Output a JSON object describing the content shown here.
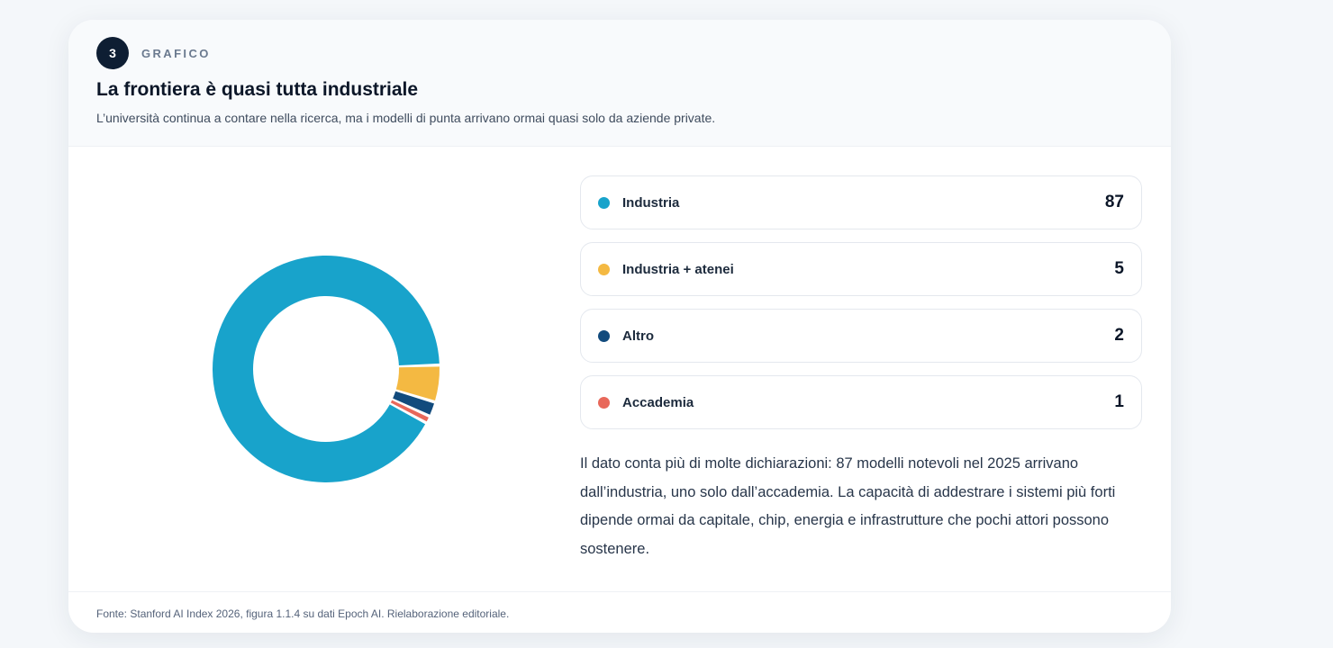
{
  "header": {
    "step_number": "3",
    "eyebrow": "GRAFICO",
    "title": "La frontiera è quasi tutta industriale",
    "subtitle": "L’università continua a contare nella ricerca, ma i modelli di punta arrivano ormai quasi solo da aziende private."
  },
  "chart_data": {
    "type": "pie",
    "variant": "donut",
    "categories": [
      "Industria",
      "Industria + atenei",
      "Altro",
      "Accademia"
    ],
    "values": [
      87,
      5,
      2,
      1
    ],
    "colors": [
      "#18a3cb",
      "#f4b942",
      "#124b7d",
      "#e8685a"
    ],
    "title": "",
    "legend_position": "right"
  },
  "legend": {
    "items": [
      {
        "label": "Industria",
        "value": "87",
        "color": "#18a3cb"
      },
      {
        "label": "Industria + atenei",
        "value": "5",
        "color": "#f4b942"
      },
      {
        "label": "Altro",
        "value": "2",
        "color": "#124b7d"
      },
      {
        "label": "Accademia",
        "value": "1",
        "color": "#e8685a"
      }
    ]
  },
  "body_text": "Il dato conta più di molte dichiarazioni: 87 modelli notevoli nel 2025 arrivano dall’industria, uno solo dall’accademia. La capacità di addestrare i sistemi più forti dipende ormai da capitale, chip, energia e infrastrutture che pochi attori possono sostenere.",
  "footer": {
    "source": "Fonte: Stanford AI Index 2026, figura 1.1.4 su dati Epoch AI. Rielaborazione editoriale."
  }
}
